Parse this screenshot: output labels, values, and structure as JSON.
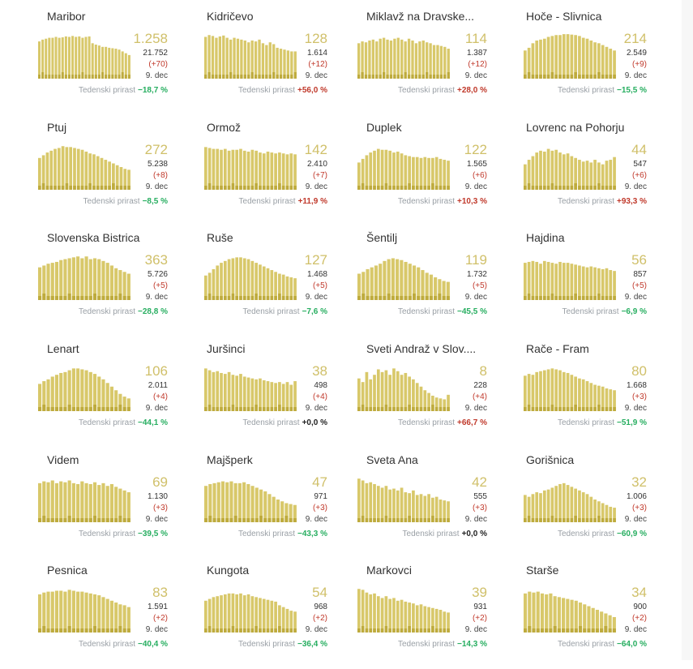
{
  "labels": {
    "weekly": "Tedenski prirast",
    "date": "9. dec"
  },
  "colors": {
    "bar": "#d8c86a",
    "bar_dark": "#b5a22f",
    "active": "#d0c06a",
    "negative": "#27ae60",
    "positive": "#c0392b"
  },
  "municipalities": [
    {
      "name": "Maribor",
      "active": "1.258",
      "total": "21.752",
      "delta": "(+70)",
      "weekly": "−18,7 %",
      "trend": "neg"
    },
    {
      "name": "Kidričevo",
      "active": "128",
      "total": "1.614",
      "delta": "(+12)",
      "weekly": "+56,0 %",
      "trend": "pos"
    },
    {
      "name": "Miklavž na Dravske...",
      "active": "114",
      "total": "1.387",
      "delta": "(+12)",
      "weekly": "+28,0 %",
      "trend": "pos"
    },
    {
      "name": "Hoče - Slivnica",
      "active": "214",
      "total": "2.549",
      "delta": "(+9)",
      "weekly": "−15,5 %",
      "trend": "neg"
    },
    {
      "name": "Ptuj",
      "active": "272",
      "total": "5.238",
      "delta": "(+8)",
      "weekly": "−8,5 %",
      "trend": "neg"
    },
    {
      "name": "Ormož",
      "active": "142",
      "total": "2.410",
      "delta": "(+7)",
      "weekly": "+11,9 %",
      "trend": "pos"
    },
    {
      "name": "Duplek",
      "active": "122",
      "total": "1.565",
      "delta": "(+6)",
      "weekly": "+10,3 %",
      "trend": "pos"
    },
    {
      "name": "Lovrenc na Pohorju",
      "active": "44",
      "total": "547",
      "delta": "(+6)",
      "weekly": "+93,3 %",
      "trend": "pos"
    },
    {
      "name": "Slovenska Bistrica",
      "active": "363",
      "total": "5.726",
      "delta": "(+5)",
      "weekly": "−28,8 %",
      "trend": "neg"
    },
    {
      "name": "Ruše",
      "active": "127",
      "total": "1.468",
      "delta": "(+5)",
      "weekly": "−7,6 %",
      "trend": "neg"
    },
    {
      "name": "Šentilj",
      "active": "119",
      "total": "1.732",
      "delta": "(+5)",
      "weekly": "−45,5 %",
      "trend": "neg"
    },
    {
      "name": "Hajdina",
      "active": "56",
      "total": "857",
      "delta": "(+5)",
      "weekly": "−6,9 %",
      "trend": "neg"
    },
    {
      "name": "Lenart",
      "active": "106",
      "total": "2.011",
      "delta": "(+4)",
      "weekly": "−44,1 %",
      "trend": "neg"
    },
    {
      "name": "Juršinci",
      "active": "38",
      "total": "498",
      "delta": "(+4)",
      "weekly": "+0,0 %",
      "trend": "zero"
    },
    {
      "name": "Sveti Andraž v Slov....",
      "active": "8",
      "total": "228",
      "delta": "(+4)",
      "weekly": "+66,7 %",
      "trend": "pos"
    },
    {
      "name": "Rače - Fram",
      "active": "80",
      "total": "1.668",
      "delta": "(+3)",
      "weekly": "−51,9 %",
      "trend": "neg"
    },
    {
      "name": "Videm",
      "active": "69",
      "total": "1.130",
      "delta": "(+3)",
      "weekly": "−39,5 %",
      "trend": "neg"
    },
    {
      "name": "Majšperk",
      "active": "47",
      "total": "971",
      "delta": "(+3)",
      "weekly": "−43,3 %",
      "trend": "neg"
    },
    {
      "name": "Sveta Ana",
      "active": "42",
      "total": "555",
      "delta": "(+3)",
      "weekly": "+0,0 %",
      "trend": "zero"
    },
    {
      "name": "Gorišnica",
      "active": "32",
      "total": "1.006",
      "delta": "(+3)",
      "weekly": "−60,9 %",
      "trend": "neg"
    },
    {
      "name": "Pesnica",
      "active": "83",
      "total": "1.591",
      "delta": "(+2)",
      "weekly": "−40,4 %",
      "trend": "neg"
    },
    {
      "name": "Kungota",
      "active": "54",
      "total": "968",
      "delta": "(+2)",
      "weekly": "−36,4 %",
      "trend": "neg"
    },
    {
      "name": "Markovci",
      "active": "39",
      "total": "931",
      "delta": "(+2)",
      "weekly": "−14,3 %",
      "trend": "neg"
    },
    {
      "name": "Starše",
      "active": "34",
      "total": "900",
      "delta": "(+2)",
      "weekly": "−64,0 %",
      "trend": "neg"
    }
  ],
  "chart_data": {
    "type": "bar",
    "title": "",
    "xlabel": "",
    "ylabel": "",
    "series_note": "Relative active-case sparkline per municipality (0–1 of local max), oldest to newest",
    "sparklines": [
      [
        0.82,
        0.86,
        0.88,
        0.9,
        0.9,
        0.92,
        0.9,
        0.91,
        0.93,
        0.92,
        0.94,
        0.92,
        0.93,
        0.9,
        0.92,
        0.93,
        0.78,
        0.75,
        0.73,
        0.7,
        0.7,
        0.68,
        0.67,
        0.66,
        0.64,
        0.6,
        0.56,
        0.52
      ],
      [
        0.92,
        0.96,
        0.94,
        0.9,
        0.93,
        0.95,
        0.9,
        0.86,
        0.9,
        0.88,
        0.86,
        0.84,
        0.8,
        0.84,
        0.82,
        0.86,
        0.78,
        0.74,
        0.8,
        0.76,
        0.68,
        0.66,
        0.64,
        0.62,
        0.6,
        0.6
      ],
      [
        0.78,
        0.82,
        0.8,
        0.84,
        0.86,
        0.82,
        0.88,
        0.9,
        0.86,
        0.84,
        0.88,
        0.9,
        0.86,
        0.82,
        0.88,
        0.84,
        0.78,
        0.82,
        0.84,
        0.8,
        0.78,
        0.74,
        0.74,
        0.72,
        0.7,
        0.66
      ],
      [
        0.62,
        0.68,
        0.78,
        0.84,
        0.86,
        0.88,
        0.92,
        0.94,
        0.96,
        0.96,
        0.98,
        0.98,
        0.97,
        0.96,
        0.94,
        0.9,
        0.88,
        0.84,
        0.8,
        0.78,
        0.74,
        0.7,
        0.66,
        0.62
      ],
      [
        0.7,
        0.76,
        0.82,
        0.86,
        0.9,
        0.92,
        0.96,
        0.94,
        0.94,
        0.92,
        0.9,
        0.88,
        0.84,
        0.8,
        0.78,
        0.74,
        0.7,
        0.66,
        0.62,
        0.58,
        0.54,
        0.5,
        0.46,
        0.44
      ],
      [
        0.94,
        0.92,
        0.9,
        0.9,
        0.88,
        0.9,
        0.86,
        0.88,
        0.88,
        0.9,
        0.86,
        0.84,
        0.88,
        0.86,
        0.82,
        0.8,
        0.84,
        0.82,
        0.8,
        0.82,
        0.8,
        0.78,
        0.8,
        0.78
      ],
      [
        0.6,
        0.68,
        0.76,
        0.82,
        0.86,
        0.9,
        0.88,
        0.88,
        0.86,
        0.82,
        0.84,
        0.8,
        0.76,
        0.74,
        0.72,
        0.72,
        0.7,
        0.72,
        0.7,
        0.7,
        0.72,
        0.68,
        0.66,
        0.64
      ],
      [
        0.56,
        0.66,
        0.74,
        0.82,
        0.86,
        0.84,
        0.9,
        0.86,
        0.88,
        0.82,
        0.78,
        0.8,
        0.74,
        0.7,
        0.66,
        0.62,
        0.64,
        0.6,
        0.66,
        0.6,
        0.56,
        0.64,
        0.66,
        0.72
      ],
      [
        0.72,
        0.76,
        0.8,
        0.82,
        0.84,
        0.88,
        0.9,
        0.92,
        0.94,
        0.96,
        0.92,
        0.96,
        0.9,
        0.92,
        0.9,
        0.86,
        0.82,
        0.76,
        0.7,
        0.66,
        0.62,
        0.58
      ],
      [
        0.54,
        0.6,
        0.68,
        0.76,
        0.82,
        0.86,
        0.9,
        0.92,
        0.94,
        0.94,
        0.92,
        0.9,
        0.86,
        0.82,
        0.78,
        0.74,
        0.7,
        0.66,
        0.62,
        0.58,
        0.56,
        0.52,
        0.5,
        0.48
      ],
      [
        0.58,
        0.62,
        0.68,
        0.72,
        0.76,
        0.8,
        0.86,
        0.9,
        0.92,
        0.9,
        0.88,
        0.84,
        0.8,
        0.76,
        0.72,
        0.66,
        0.6,
        0.56,
        0.5,
        0.46,
        0.42,
        0.4
      ],
      [
        0.82,
        0.84,
        0.86,
        0.84,
        0.8,
        0.86,
        0.84,
        0.82,
        0.8,
        0.84,
        0.82,
        0.82,
        0.8,
        0.78,
        0.76,
        0.74,
        0.72,
        0.74,
        0.72,
        0.7,
        0.68,
        0.7,
        0.66,
        0.64
      ],
      [
        0.6,
        0.66,
        0.7,
        0.76,
        0.8,
        0.84,
        0.86,
        0.9,
        0.94,
        0.94,
        0.92,
        0.9,
        0.86,
        0.82,
        0.76,
        0.7,
        0.62,
        0.54,
        0.46,
        0.38,
        0.32,
        0.28
      ],
      [
        0.94,
        0.9,
        0.86,
        0.88,
        0.84,
        0.82,
        0.86,
        0.8,
        0.78,
        0.82,
        0.76,
        0.74,
        0.72,
        0.7,
        0.72,
        0.68,
        0.66,
        0.64,
        0.62,
        0.64,
        0.6,
        0.64,
        0.58,
        0.66
      ],
      [
        0.72,
        0.64,
        0.86,
        0.7,
        0.8,
        0.92,
        0.86,
        0.9,
        0.8,
        0.94,
        0.88,
        0.8,
        0.84,
        0.76,
        0.7,
        0.62,
        0.54,
        0.46,
        0.4,
        0.34,
        0.3,
        0.28,
        0.26,
        0.36
      ],
      [
        0.78,
        0.82,
        0.8,
        0.86,
        0.88,
        0.9,
        0.92,
        0.94,
        0.92,
        0.9,
        0.86,
        0.84,
        0.8,
        0.76,
        0.72,
        0.7,
        0.66,
        0.62,
        0.58,
        0.56,
        0.54,
        0.5,
        0.48,
        0.46
      ],
      [
        0.86,
        0.9,
        0.88,
        0.92,
        0.86,
        0.9,
        0.88,
        0.92,
        0.86,
        0.84,
        0.9,
        0.86,
        0.84,
        0.88,
        0.82,
        0.86,
        0.8,
        0.84,
        0.78,
        0.74,
        0.7,
        0.66
      ],
      [
        0.8,
        0.84,
        0.86,
        0.88,
        0.9,
        0.88,
        0.9,
        0.86,
        0.86,
        0.88,
        0.84,
        0.8,
        0.76,
        0.72,
        0.68,
        0.62,
        0.56,
        0.5,
        0.46,
        0.42,
        0.4,
        0.38
      ],
      [
        0.96,
        0.92,
        0.86,
        0.88,
        0.84,
        0.8,
        0.76,
        0.8,
        0.72,
        0.74,
        0.7,
        0.76,
        0.66,
        0.64,
        0.7,
        0.6,
        0.62,
        0.58,
        0.62,
        0.54,
        0.56,
        0.5,
        0.48,
        0.46
      ],
      [
        0.6,
        0.56,
        0.62,
        0.66,
        0.64,
        0.7,
        0.72,
        0.76,
        0.8,
        0.84,
        0.86,
        0.82,
        0.78,
        0.74,
        0.7,
        0.66,
        0.62,
        0.56,
        0.5,
        0.46,
        0.42,
        0.38,
        0.34,
        0.32
      ],
      [
        0.84,
        0.88,
        0.9,
        0.9,
        0.92,
        0.92,
        0.9,
        0.94,
        0.92,
        0.9,
        0.9,
        0.88,
        0.86,
        0.84,
        0.82,
        0.78,
        0.74,
        0.7,
        0.66,
        0.62,
        0.6,
        0.56
      ],
      [
        0.7,
        0.74,
        0.78,
        0.8,
        0.82,
        0.84,
        0.86,
        0.86,
        0.84,
        0.86,
        0.82,
        0.84,
        0.8,
        0.78,
        0.76,
        0.74,
        0.72,
        0.7,
        0.68,
        0.6,
        0.56,
        0.52,
        0.48,
        0.46
      ],
      [
        0.96,
        0.94,
        0.88,
        0.84,
        0.86,
        0.8,
        0.76,
        0.8,
        0.74,
        0.76,
        0.7,
        0.72,
        0.68,
        0.66,
        0.64,
        0.6,
        0.62,
        0.58,
        0.56,
        0.54,
        0.52,
        0.5,
        0.46,
        0.44
      ],
      [
        0.86,
        0.9,
        0.88,
        0.9,
        0.86,
        0.84,
        0.86,
        0.8,
        0.78,
        0.76,
        0.74,
        0.72,
        0.7,
        0.66,
        0.62,
        0.58,
        0.54,
        0.5,
        0.46,
        0.42,
        0.38,
        0.34
      ]
    ]
  }
}
